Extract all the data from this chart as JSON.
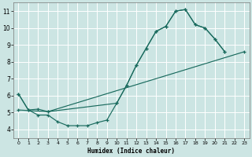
{
  "xlabel": "Humidex (Indice chaleur)",
  "bg_color": "#cce5e3",
  "grid_color": "#ffffff",
  "line_color": "#1a6b5e",
  "xlim": [
    -0.5,
    23.5
  ],
  "ylim": [
    3.5,
    11.5
  ],
  "xticks": [
    0,
    1,
    2,
    3,
    4,
    5,
    6,
    7,
    8,
    9,
    10,
    11,
    12,
    13,
    14,
    15,
    16,
    17,
    18,
    19,
    20,
    21,
    22,
    23
  ],
  "yticks": [
    4,
    5,
    6,
    7,
    8,
    9,
    10,
    11
  ],
  "line1_x": [
    0,
    1,
    2,
    3,
    4,
    5,
    6,
    7,
    8,
    9,
    10,
    11,
    12,
    13,
    14,
    15,
    16,
    17,
    18,
    19,
    20,
    21
  ],
  "line1_y": [
    6.1,
    5.15,
    4.85,
    4.85,
    4.45,
    4.22,
    4.22,
    4.22,
    4.4,
    4.55,
    5.55,
    6.6,
    7.8,
    8.8,
    9.8,
    10.1,
    11.0,
    11.1,
    10.2,
    10.0,
    9.35,
    8.6
  ],
  "line2_x": [
    0,
    1,
    2,
    3,
    10,
    11,
    12,
    13,
    14,
    15,
    16,
    17,
    18,
    19,
    20,
    21
  ],
  "line2_y": [
    6.1,
    5.15,
    5.2,
    5.05,
    5.55,
    6.6,
    7.8,
    8.8,
    9.8,
    10.1,
    11.0,
    11.1,
    10.2,
    10.0,
    9.35,
    8.6
  ],
  "line3_x": [
    0,
    3,
    23
  ],
  "line3_y": [
    5.15,
    5.05,
    8.6
  ]
}
